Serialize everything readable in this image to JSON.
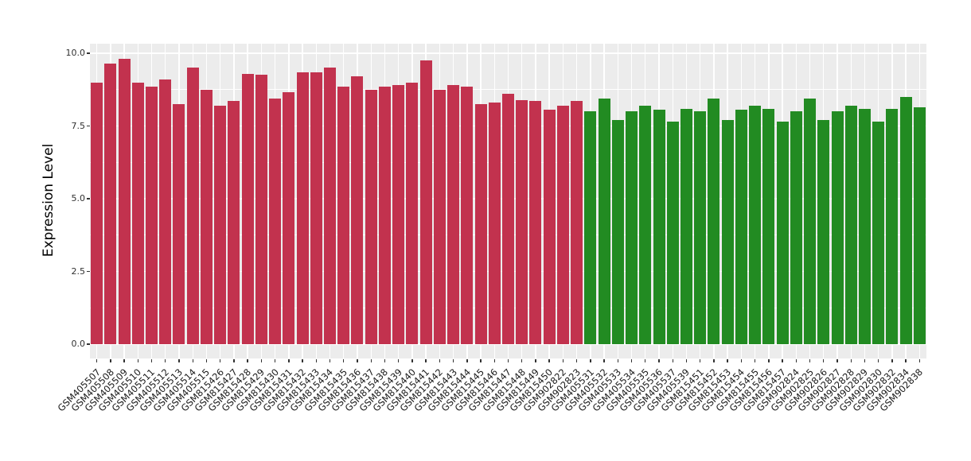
{
  "chart_data": {
    "type": "bar",
    "title": "",
    "xlabel": "",
    "ylabel": "Expression Level",
    "legend": "none",
    "grid": true,
    "ylim": [
      -0.5,
      10.45
    ],
    "yticks": [
      "0.0",
      "2.5",
      "5.0",
      "7.5",
      "10.0"
    ],
    "ytick_values": [
      0,
      2.5,
      5,
      7.5,
      10
    ],
    "minor_gridlines": [
      1.25,
      3.75,
      6.25,
      8.75
    ],
    "colors": {
      "red": "#C2324E",
      "green": "#228B22"
    },
    "panel_background": "#ECECEC",
    "gridline_color": "#FFFFFF",
    "bars": [
      {
        "label": "GSM405507",
        "value": 9.0,
        "color": "red"
      },
      {
        "label": "GSM405508",
        "value": 9.65,
        "color": "red"
      },
      {
        "label": "GSM405509",
        "value": 9.8,
        "color": "red"
      },
      {
        "label": "GSM405510",
        "value": 9.0,
        "color": "red"
      },
      {
        "label": "GSM405511",
        "value": 8.85,
        "color": "red"
      },
      {
        "label": "GSM405512",
        "value": 9.1,
        "color": "red"
      },
      {
        "label": "GSM405513",
        "value": 8.25,
        "color": "red"
      },
      {
        "label": "GSM405514",
        "value": 9.5,
        "color": "red"
      },
      {
        "label": "GSM405515",
        "value": 8.75,
        "color": "red"
      },
      {
        "label": "GSM815426",
        "value": 8.2,
        "color": "red"
      },
      {
        "label": "GSM815427",
        "value": 8.35,
        "color": "red"
      },
      {
        "label": "GSM815428",
        "value": 9.3,
        "color": "red"
      },
      {
        "label": "GSM815429",
        "value": 9.25,
        "color": "red"
      },
      {
        "label": "GSM815430",
        "value": 8.45,
        "color": "red"
      },
      {
        "label": "GSM815431",
        "value": 8.65,
        "color": "red"
      },
      {
        "label": "GSM815432",
        "value": 9.35,
        "color": "red"
      },
      {
        "label": "GSM815433",
        "value": 9.35,
        "color": "red"
      },
      {
        "label": "GSM815434",
        "value": 9.5,
        "color": "red"
      },
      {
        "label": "GSM815435",
        "value": 8.85,
        "color": "red"
      },
      {
        "label": "GSM815436",
        "value": 9.2,
        "color": "red"
      },
      {
        "label": "GSM815437",
        "value": 8.75,
        "color": "red"
      },
      {
        "label": "GSM815438",
        "value": 8.85,
        "color": "red"
      },
      {
        "label": "GSM815439",
        "value": 8.9,
        "color": "red"
      },
      {
        "label": "GSM815440",
        "value": 9.0,
        "color": "red"
      },
      {
        "label": "GSM815441",
        "value": 9.75,
        "color": "red"
      },
      {
        "label": "GSM815442",
        "value": 8.75,
        "color": "red"
      },
      {
        "label": "GSM815443",
        "value": 8.9,
        "color": "red"
      },
      {
        "label": "GSM815444",
        "value": 8.85,
        "color": "red"
      },
      {
        "label": "GSM815445",
        "value": 8.25,
        "color": "red"
      },
      {
        "label": "GSM815446",
        "value": 8.3,
        "color": "red"
      },
      {
        "label": "GSM815447",
        "value": 8.6,
        "color": "red"
      },
      {
        "label": "GSM815448",
        "value": 8.4,
        "color": "red"
      },
      {
        "label": "GSM815449",
        "value": 8.35,
        "color": "red"
      },
      {
        "label": "GSM815450",
        "value": 8.05,
        "color": "red"
      },
      {
        "label": "GSM902822",
        "value": 8.2,
        "color": "red"
      },
      {
        "label": "GSM902823",
        "value": 8.35,
        "color": "red"
      },
      {
        "label": "GSM405531",
        "value": 8.0,
        "color": "green"
      },
      {
        "label": "GSM405532",
        "value": 8.45,
        "color": "green"
      },
      {
        "label": "GSM405533",
        "value": 7.7,
        "color": "green"
      },
      {
        "label": "GSM405534",
        "value": 8.0,
        "color": "green"
      },
      {
        "label": "GSM405535",
        "value": 8.2,
        "color": "green"
      },
      {
        "label": "GSM405536",
        "value": 8.05,
        "color": "green"
      },
      {
        "label": "GSM405537",
        "value": 7.65,
        "color": "green"
      },
      {
        "label": "GSM405539",
        "value": 8.1,
        "color": "green"
      },
      {
        "label": "GSM815451",
        "value": 8.0,
        "color": "green"
      },
      {
        "label": "GSM815452",
        "value": 8.45,
        "color": "green"
      },
      {
        "label": "GSM815453",
        "value": 7.7,
        "color": "green"
      },
      {
        "label": "GSM815454",
        "value": 8.05,
        "color": "green"
      },
      {
        "label": "GSM815455",
        "value": 8.2,
        "color": "green"
      },
      {
        "label": "GSM815456",
        "value": 8.1,
        "color": "green"
      },
      {
        "label": "GSM815457",
        "value": 7.65,
        "color": "green"
      },
      {
        "label": "GSM902824",
        "value": 8.0,
        "color": "green"
      },
      {
        "label": "GSM902825",
        "value": 8.45,
        "color": "green"
      },
      {
        "label": "GSM902826",
        "value": 7.7,
        "color": "green"
      },
      {
        "label": "GSM902827",
        "value": 8.0,
        "color": "green"
      },
      {
        "label": "GSM902828",
        "value": 8.2,
        "color": "green"
      },
      {
        "label": "GSM902829",
        "value": 8.1,
        "color": "green"
      },
      {
        "label": "GSM902830",
        "value": 7.65,
        "color": "green"
      },
      {
        "label": "GSM902832",
        "value": 8.1,
        "color": "green"
      },
      {
        "label": "GSM902834",
        "value": 8.5,
        "color": "green"
      },
      {
        "label": "GSM902838",
        "value": 8.15,
        "color": "green"
      }
    ]
  }
}
